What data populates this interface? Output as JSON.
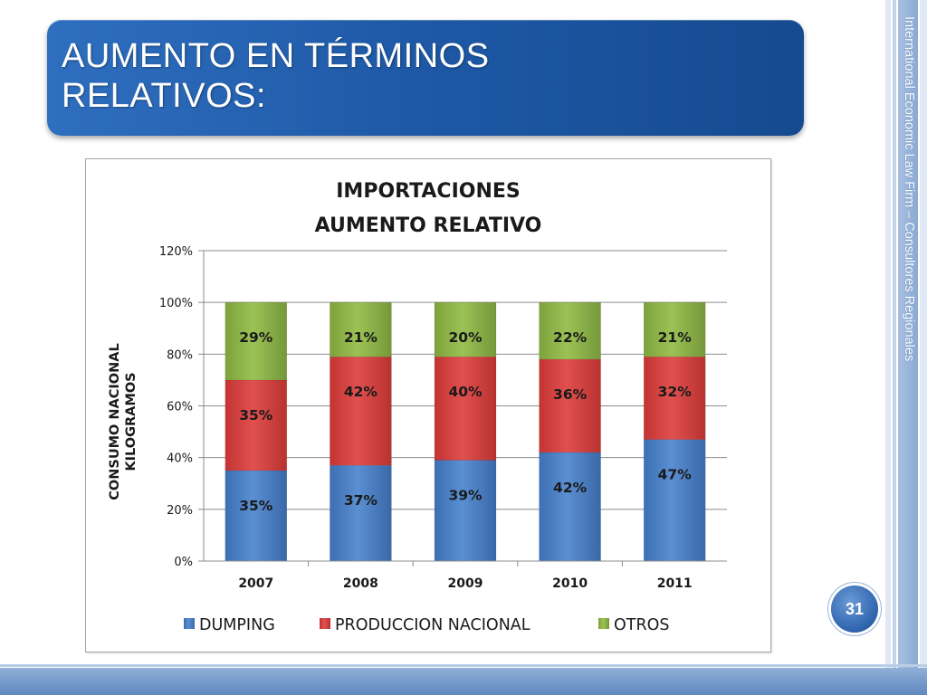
{
  "slide": {
    "title_line1": "AUMENTO EN TÉRMINOS",
    "title_line2": "RELATIVOS:",
    "firm_text": "International Economic Law Firm – Consultores Regionales",
    "page_number": "31"
  },
  "colors": {
    "banner": "#1f5aa8",
    "dumping": "#4a7fc4",
    "produccion": "#d84341",
    "otros": "#8fb449"
  },
  "chart_data": {
    "type": "bar",
    "stacked": true,
    "title_line1": "IMPORTACIONES",
    "title_line2": "AUMENTO RELATIVO",
    "ylabel_line1": "CONSUMO NACIONAL",
    "ylabel_line2": "KILOGRAMOS",
    "xlabel": "",
    "ylim": [
      0,
      120
    ],
    "yticks": [
      "0%",
      "20%",
      "40%",
      "60%",
      "80%",
      "100%",
      "120%"
    ],
    "grid": true,
    "legend_position": "bottom",
    "categories": [
      "2007",
      "2008",
      "2009",
      "2010",
      "2011"
    ],
    "series": [
      {
        "name": "DUMPING",
        "values": [
          35,
          37,
          39,
          42,
          47
        ],
        "labels": [
          "35%",
          "37%",
          "39%",
          "42%",
          "47%"
        ]
      },
      {
        "name": "PRODUCCION NACIONAL",
        "values": [
          35,
          42,
          40,
          36,
          32
        ],
        "labels": [
          "35%",
          "42%",
          "40%",
          "36%",
          "32%"
        ]
      },
      {
        "name": "OTROS",
        "values": [
          29,
          21,
          20,
          22,
          21
        ],
        "labels": [
          "29%",
          "21%",
          "20%",
          "22%",
          "21%"
        ]
      }
    ]
  }
}
